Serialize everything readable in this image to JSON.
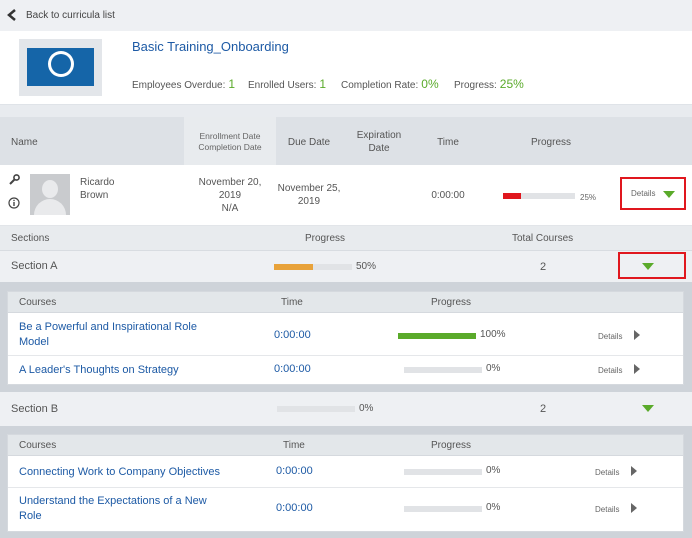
{
  "back": {
    "label": "Back to curricula list"
  },
  "curriculum": {
    "title": "Basic Training_Onboarding",
    "stats": [
      {
        "label": "Employees Overdue:",
        "value": "1"
      },
      {
        "label": "Enrolled Users:",
        "value": "1"
      },
      {
        "label": "Completion Rate:",
        "value": "0%"
      },
      {
        "label": "Progress:",
        "value": "25%"
      }
    ]
  },
  "table": {
    "headers": {
      "name": "Name",
      "enrollment": "Enrollment Date",
      "completion": "Completion Date",
      "due": "Due Date",
      "expiration_1": "Expiration",
      "expiration_2": "Date",
      "time": "Time",
      "progress": "Progress"
    }
  },
  "user": {
    "first": "Ricardo",
    "last": "Brown",
    "enroll_1": "November 20,",
    "enroll_2": "2019",
    "completion": "N/A",
    "due_1": "November 25,",
    "due_2": "2019",
    "time": "0:00:00",
    "progress_pct": "25%",
    "progress_value": 0.25,
    "details_label": "Details"
  },
  "sections_header": {
    "sections": "Sections",
    "progress": "Progress",
    "total": "Total Courses"
  },
  "sections": [
    {
      "name": "Section A",
      "progress_pct": "50%",
      "progress_value": 0.5,
      "total": "2",
      "course_headers": {
        "courses": "Courses",
        "time": "Time",
        "progress": "Progress"
      },
      "courses": [
        {
          "title_1": "Be a Powerful and Inspirational Role",
          "title_2": "Model",
          "time": "0:00:00",
          "pct": "100%",
          "value": 1.0,
          "details": "Details"
        },
        {
          "title_1": "A Leader's Thoughts on Strategy",
          "title_2": "",
          "time": "0:00:00",
          "pct": "0%",
          "value": 0,
          "details": "Details"
        }
      ]
    },
    {
      "name": "Section B",
      "progress_pct": "0%",
      "progress_value": 0,
      "total": "2",
      "course_headers": {
        "courses": "Courses",
        "time": "Time",
        "progress": "Progress"
      },
      "courses": [
        {
          "title_1": "Connecting Work to Company Objectives",
          "title_2": "",
          "time": "0:00:00",
          "pct": "0%",
          "value": 0,
          "details": "Details"
        },
        {
          "title_1": "Understand the Expectations of a New",
          "title_2": "Role",
          "time": "0:00:00",
          "pct": "0%",
          "value": 0,
          "details": "Details"
        }
      ]
    }
  ],
  "colors": {
    "accent_green": "#5aaa2a",
    "link_blue": "#1d5aa5",
    "red": "#e0171e",
    "orange": "#e8a23a"
  }
}
